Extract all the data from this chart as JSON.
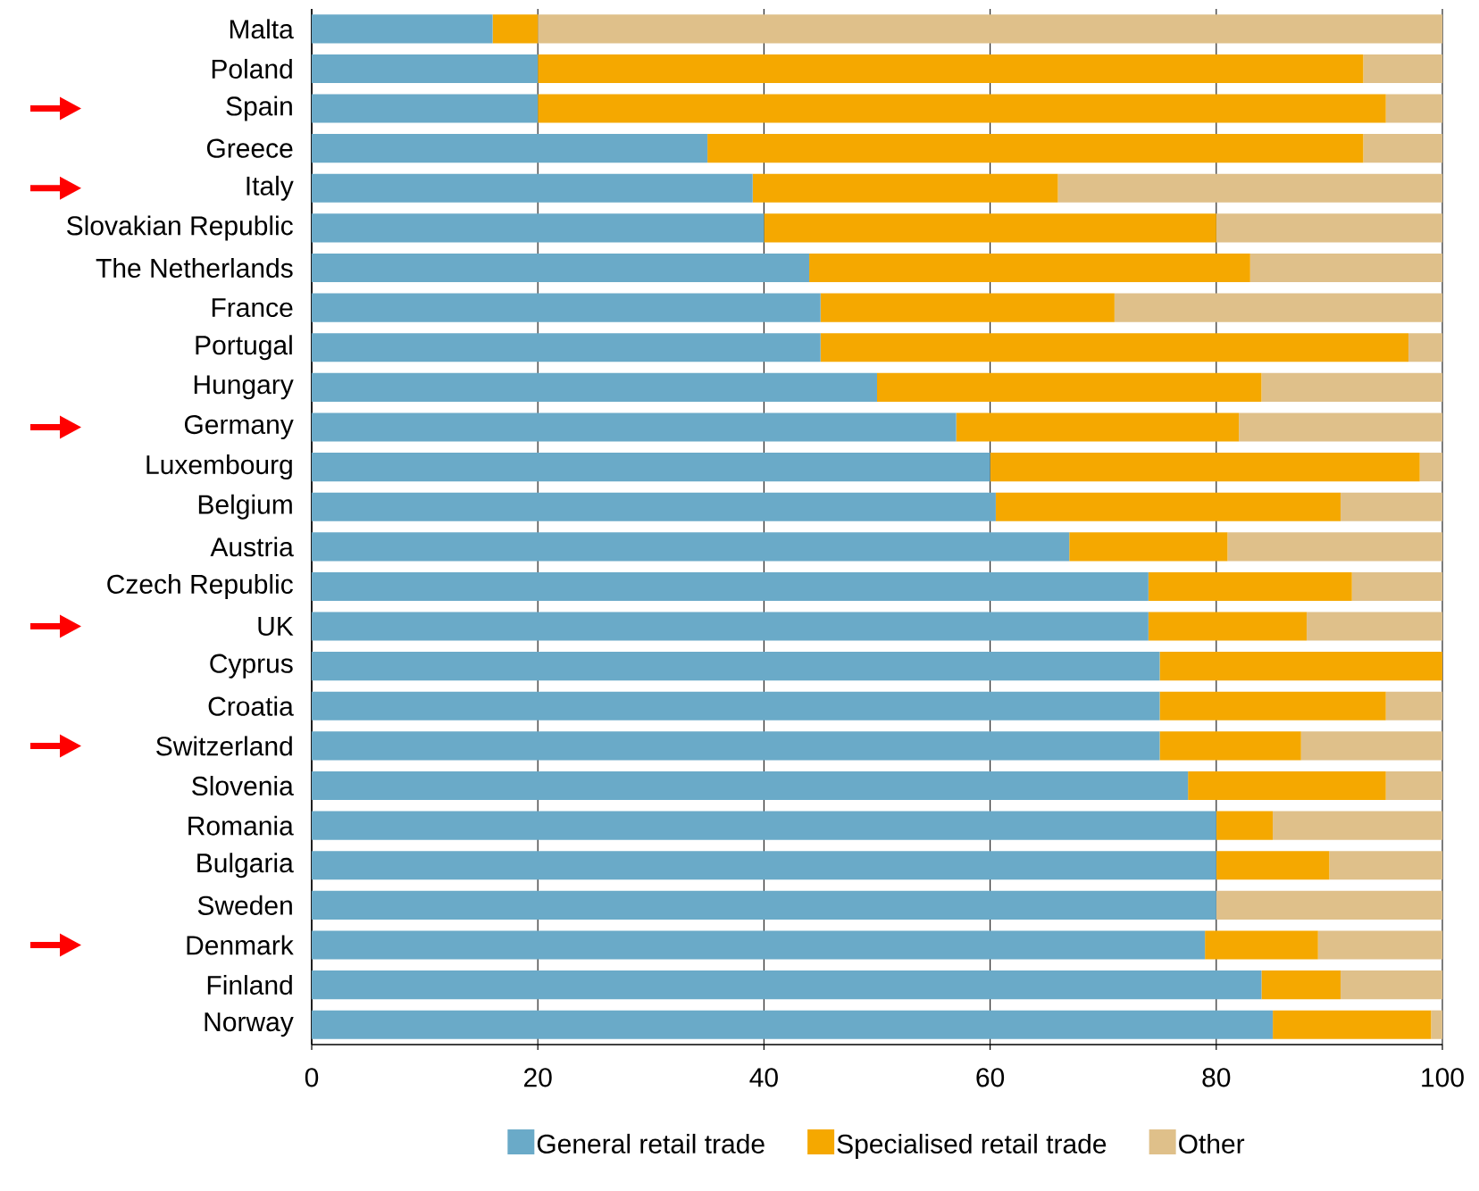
{
  "chart_data": {
    "type": "bar",
    "orientation": "horizontal",
    "stacked": true,
    "categories": [
      "Malta",
      "Poland",
      "Spain",
      "Greece",
      "Italy",
      "Slovakian Republic",
      "The Netherlands",
      "France",
      "Portugal",
      "Hungary",
      "Germany",
      "Luxembourg",
      "Belgium",
      "Austria",
      "Czech Republic",
      "UK",
      "Cyprus",
      "Croatia",
      "Switzerland",
      "Slovenia",
      "Romania",
      "Bulgaria",
      "Sweden",
      "Denmark",
      "Finland",
      "Norway"
    ],
    "series": [
      {
        "name": "General retail trade",
        "color": "#6aaac8",
        "values": [
          16,
          20,
          20,
          35,
          39,
          40,
          44,
          45,
          45,
          50,
          57,
          60,
          60.5,
          67,
          74,
          74,
          75,
          75,
          75,
          77.5,
          80,
          80,
          80,
          79,
          84,
          85
        ]
      },
      {
        "name": "Specialised retail trade",
        "color": "#f5a800",
        "values": [
          4,
          73,
          75,
          58,
          27,
          40,
          39,
          26,
          52,
          34,
          25,
          38,
          30.5,
          14,
          18,
          14,
          25,
          20,
          12.5,
          17.5,
          5,
          10,
          0,
          10,
          7,
          14
        ]
      },
      {
        "name": "Other",
        "color": "#dfc08a",
        "values": [
          80,
          7,
          5,
          7,
          34,
          20,
          17,
          29,
          3,
          16,
          18,
          2,
          9,
          19,
          8,
          12,
          0,
          5,
          12.5,
          5,
          15,
          10,
          20,
          11,
          9,
          1
        ]
      }
    ],
    "xlim": [
      0,
      100
    ],
    "xticks": [
      0,
      20,
      40,
      60,
      80,
      100
    ],
    "grid": "x",
    "legend": "bottom"
  }
}
